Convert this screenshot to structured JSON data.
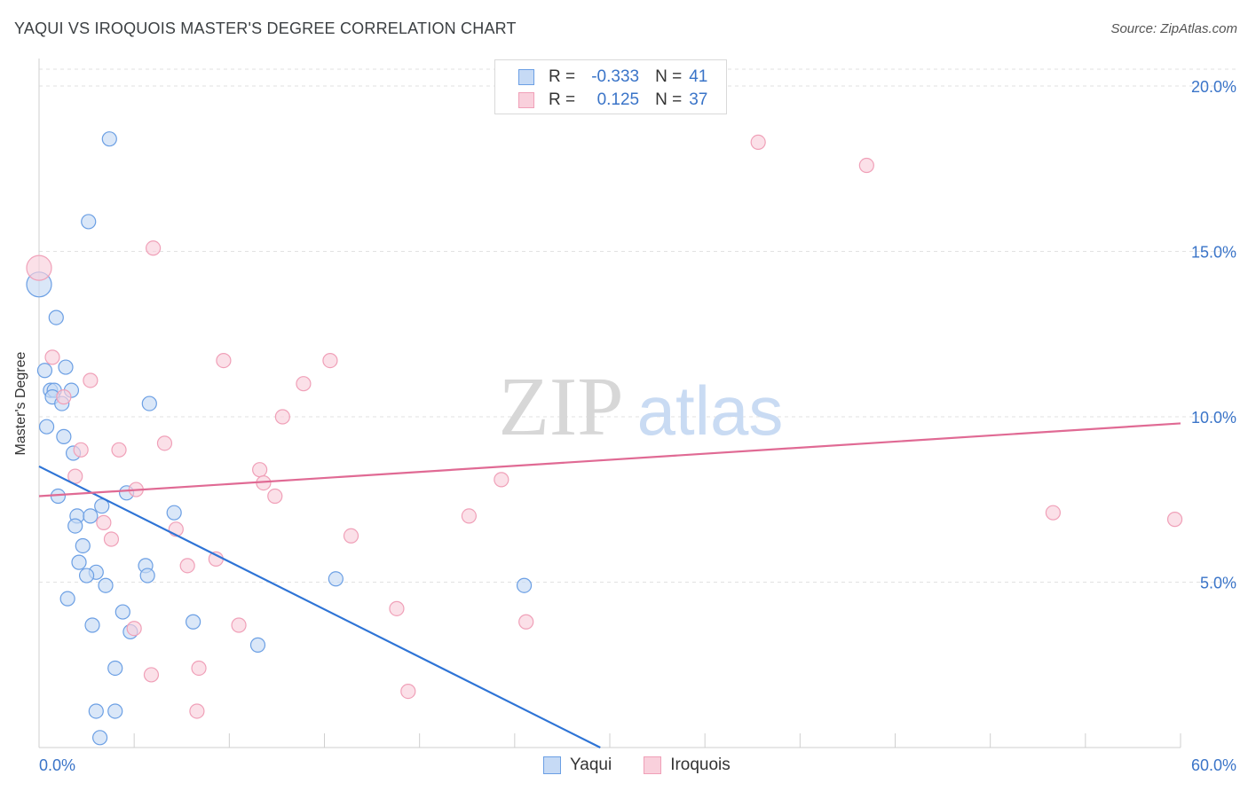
{
  "title": "YAQUI VS IROQUOIS MASTER'S DEGREE CORRELATION CHART",
  "source": "Source: ZipAtlas.com",
  "watermark": {
    "zip": "ZIP",
    "atlas": "atlas"
  },
  "legend": {
    "rows": [
      {
        "r_label": "R =",
        "r_value": "-0.333",
        "n_label": "N =",
        "n_value": "41"
      },
      {
        "r_label": "R =",
        "r_value": "0.125",
        "n_label": "N =",
        "n_value": "37"
      }
    ]
  },
  "bottom_legend": [
    "Yaqui",
    "Iroquois"
  ],
  "chart_data": {
    "type": "scatter",
    "title": "YAQUI VS IROQUOIS MASTER'S DEGREE CORRELATION CHART",
    "ylabel": "Master's Degree",
    "xlabel": "",
    "xlim": [
      0,
      60
    ],
    "ylim": [
      0,
      20
    ],
    "x_tick_labels": [
      "0.0%",
      "60.0%"
    ],
    "y_ticks": [
      5,
      10,
      15,
      20
    ],
    "y_tick_labels": [
      "5.0%",
      "10.0%",
      "15.0%",
      "20.0%"
    ],
    "grid": true,
    "legend_position": "top-center",
    "series": [
      {
        "name": "Yaqui",
        "color": "#6b9fe4",
        "fill": "#c6daf5",
        "trend": {
          "x0": 0,
          "y0": 8.5,
          "x1": 29.5,
          "y1": 0
        },
        "points": [
          [
            0.0,
            14.0
          ],
          [
            3.7,
            18.4
          ],
          [
            2.6,
            15.9
          ],
          [
            0.9,
            13.0
          ],
          [
            0.3,
            11.4
          ],
          [
            1.4,
            11.5
          ],
          [
            0.6,
            10.8
          ],
          [
            0.8,
            10.8
          ],
          [
            1.7,
            10.8
          ],
          [
            0.7,
            10.6
          ],
          [
            1.2,
            10.4
          ],
          [
            5.8,
            10.4
          ],
          [
            0.4,
            9.7
          ],
          [
            1.3,
            9.4
          ],
          [
            1.8,
            8.9
          ],
          [
            1.0,
            7.6
          ],
          [
            4.6,
            7.7
          ],
          [
            2.0,
            7.0
          ],
          [
            2.7,
            7.0
          ],
          [
            3.3,
            7.3
          ],
          [
            7.1,
            7.1
          ],
          [
            1.9,
            6.7
          ],
          [
            2.3,
            6.1
          ],
          [
            2.1,
            5.6
          ],
          [
            5.6,
            5.5
          ],
          [
            3.0,
            5.3
          ],
          [
            2.5,
            5.2
          ],
          [
            5.7,
            5.2
          ],
          [
            15.6,
            5.1
          ],
          [
            3.5,
            4.9
          ],
          [
            25.5,
            4.9
          ],
          [
            1.5,
            4.5
          ],
          [
            4.4,
            4.1
          ],
          [
            2.8,
            3.7
          ],
          [
            8.1,
            3.8
          ],
          [
            4.8,
            3.5
          ],
          [
            11.5,
            3.1
          ],
          [
            4.0,
            2.4
          ],
          [
            3.0,
            1.1
          ],
          [
            4.0,
            1.1
          ],
          [
            3.2,
            0.3
          ]
        ]
      },
      {
        "name": "Iroquois",
        "color": "#f0a0b8",
        "fill": "#f9d0dc",
        "trend": {
          "x0": 0,
          "y0": 7.6,
          "x1": 60,
          "y1": 9.8
        },
        "points": [
          [
            0.0,
            14.5
          ],
          [
            6.0,
            15.1
          ],
          [
            37.8,
            18.3
          ],
          [
            43.5,
            17.6
          ],
          [
            0.7,
            11.8
          ],
          [
            9.7,
            11.7
          ],
          [
            15.3,
            11.7
          ],
          [
            2.7,
            11.1
          ],
          [
            13.9,
            11.0
          ],
          [
            1.3,
            10.6
          ],
          [
            12.8,
            10.0
          ],
          [
            2.2,
            9.0
          ],
          [
            4.2,
            9.0
          ],
          [
            6.6,
            9.2
          ],
          [
            1.9,
            8.2
          ],
          [
            11.6,
            8.4
          ],
          [
            11.8,
            8.0
          ],
          [
            24.3,
            8.1
          ],
          [
            5.1,
            7.8
          ],
          [
            12.4,
            7.6
          ],
          [
            22.6,
            7.0
          ],
          [
            53.3,
            7.1
          ],
          [
            59.7,
            6.9
          ],
          [
            3.4,
            6.8
          ],
          [
            7.2,
            6.6
          ],
          [
            3.8,
            6.3
          ],
          [
            16.4,
            6.4
          ],
          [
            9.3,
            5.7
          ],
          [
            7.8,
            5.5
          ],
          [
            18.8,
            4.2
          ],
          [
            25.6,
            3.8
          ],
          [
            10.5,
            3.7
          ],
          [
            5.0,
            3.6
          ],
          [
            8.4,
            2.4
          ],
          [
            5.9,
            2.2
          ],
          [
            19.4,
            1.7
          ],
          [
            8.3,
            1.1
          ]
        ]
      }
    ]
  }
}
